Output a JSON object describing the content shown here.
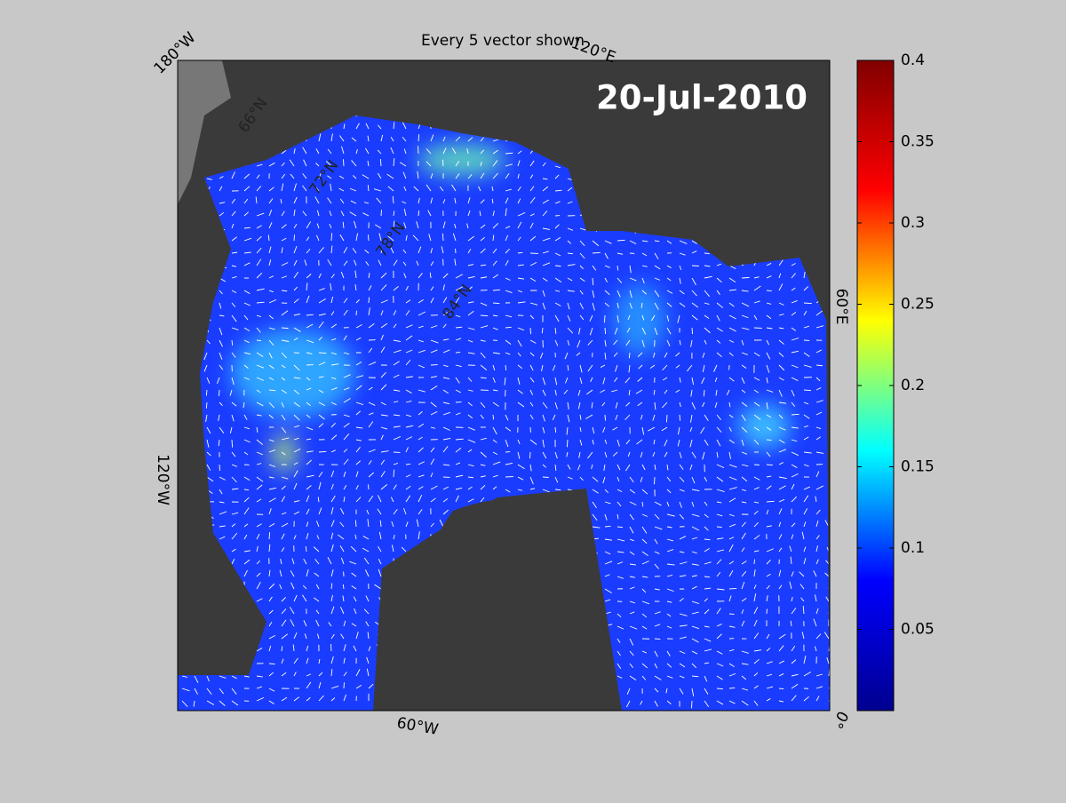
{
  "map": {
    "title": "Every 5 vector shown",
    "date": "20-Jul-2010",
    "lon_labels": [
      "180°W",
      "120°E",
      "60°E",
      "0°",
      "60°W",
      "120°W"
    ],
    "lat_labels": [
      "66°N",
      "72°N",
      "78°N",
      "84°N"
    ]
  },
  "colorbar": {
    "range": [
      0,
      0.4
    ],
    "ticks": [
      0.05,
      0.1,
      0.15,
      0.2,
      0.25,
      0.3,
      0.35,
      0.4
    ],
    "colormap": "jet"
  }
}
